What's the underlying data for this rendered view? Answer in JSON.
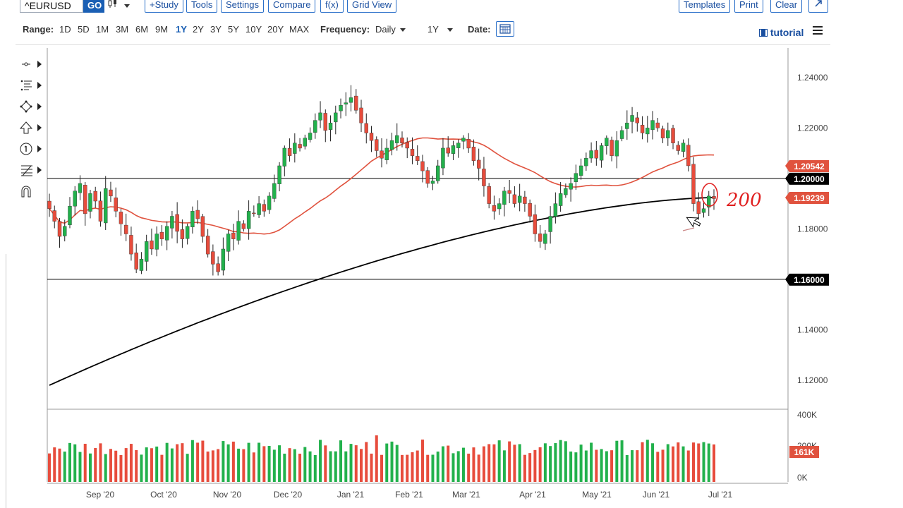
{
  "toolbar": {
    "symbol": "^EURUSD",
    "go_label": "GO",
    "chart_type_icon": "candlestick-icon",
    "buttons": [
      "+Study",
      "Tools",
      "Settings",
      "Compare",
      "f(x)",
      "Grid View"
    ],
    "right_buttons": [
      "Templates",
      "Print",
      "Clear"
    ],
    "expand_icon": "expand-icon"
  },
  "rangebar": {
    "range_label": "Range:",
    "ranges": [
      "1D",
      "5D",
      "1M",
      "3M",
      "6M",
      "9M",
      "1Y",
      "2Y",
      "3Y",
      "5Y",
      "10Y",
      "20Y",
      "MAX"
    ],
    "active_range": "1Y",
    "frequency_label": "Frequency:",
    "frequency_value": "Daily",
    "period_value": "1Y",
    "date_label": "Date:",
    "calendar_icon": "calendar-icon",
    "tutorial_label": "tutorial",
    "tutorial_icon": "film-icon",
    "menu_icon": "hamburger-icon"
  },
  "tools": [
    "crosshair-icon",
    "drawing-lines-icon",
    "shapes-icon",
    "arrow-up-icon",
    "annotation-number-icon",
    "fibonacci-icon",
    "magnet-icon"
  ],
  "colors": {
    "up": "#22b14c",
    "down": "#e74c3c",
    "ma50": "#e0523e",
    "ma200": "#000000",
    "accent": "#1a5fb4",
    "annotation": "#e02020"
  },
  "chart_data": {
    "type": "candlestick",
    "symbol": "^EURUSD",
    "frequency": "Daily",
    "range": "1Y",
    "x_tick_labels": [
      "Sep '20",
      "Oct '20",
      "Nov '20",
      "Dec '20",
      "Jan '21",
      "Feb '21",
      "Mar '21",
      "Apr '21",
      "May '21",
      "Jun '21",
      "Jul '21"
    ],
    "y_tick_labels": [
      "1.24000",
      "1.22000",
      "1.18000",
      "1.14000",
      "1.12000"
    ],
    "y_tick_values": [
      1.24,
      1.22,
      1.18,
      1.14,
      1.12
    ],
    "ylim": [
      1.1085,
      1.2517
    ],
    "price_closes": [
      1.188,
      1.183,
      1.177,
      1.181,
      1.189,
      1.195,
      1.198,
      1.186,
      1.194,
      1.191,
      1.183,
      1.196,
      1.193,
      1.187,
      1.182,
      1.178,
      1.17,
      1.164,
      1.168,
      1.175,
      1.172,
      1.178,
      1.176,
      1.181,
      1.185,
      1.179,
      1.176,
      1.181,
      1.187,
      1.184,
      1.177,
      1.17,
      1.166,
      1.163,
      1.172,
      1.178,
      1.176,
      1.183,
      1.18,
      1.187,
      1.186,
      1.19,
      1.187,
      1.193,
      1.198,
      1.205,
      1.212,
      1.209,
      1.214,
      1.212,
      1.216,
      1.218,
      1.223,
      1.226,
      1.219,
      1.222,
      1.226,
      1.229,
      1.23,
      1.232,
      1.227,
      1.222,
      1.218,
      1.215,
      1.211,
      1.208,
      1.212,
      1.215,
      1.217,
      1.214,
      1.212,
      1.209,
      1.207,
      1.203,
      1.198,
      1.199,
      1.205,
      1.212,
      1.21,
      1.213,
      1.214,
      1.216,
      1.212,
      1.207,
      1.204,
      1.197,
      1.19,
      1.187,
      1.19,
      1.195,
      1.194,
      1.19,
      1.193,
      1.19,
      1.185,
      1.178,
      1.175,
      1.178,
      1.185,
      1.19,
      1.194,
      1.196,
      1.198,
      1.202,
      1.205,
      1.208,
      1.211,
      1.208,
      1.213,
      1.216,
      1.209,
      1.215,
      1.219,
      1.222,
      1.225,
      1.222,
      1.218,
      1.22,
      1.223,
      1.22,
      1.216,
      1.219,
      1.214,
      1.211,
      1.214,
      1.205,
      1.19,
      1.186,
      1.188,
      1.193,
      1.192
    ],
    "ma50_label": "1.20542",
    "ma200_label": "1.19239",
    "hlines": [
      {
        "value": 1.2,
        "label": "1.20000"
      },
      {
        "value": 1.16,
        "label": "1.16000"
      }
    ],
    "volume_tick_labels": [
      "400K",
      "200K",
      "0K"
    ],
    "volume_last_label": "161K",
    "annotation_text": "200",
    "grid": false,
    "legend": "none"
  }
}
